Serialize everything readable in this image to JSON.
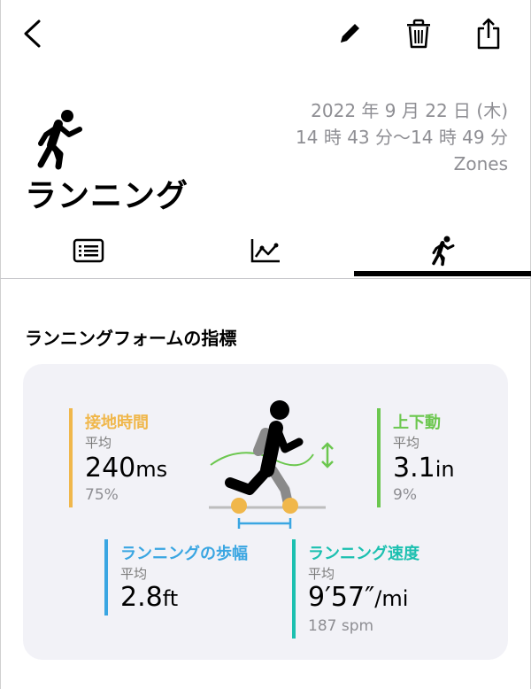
{
  "header": {
    "date": "2022 年 9 月 22 日 (木)",
    "time_range": "14 時 43 分〜14 時 49 分",
    "source": "Zones",
    "title": "ランニング"
  },
  "toolbar": {
    "back_icon": "chevron-left-icon",
    "edit_icon": "pencil-icon",
    "delete_icon": "trash-icon",
    "share_icon": "share-icon"
  },
  "tabs": [
    {
      "icon": "list-icon",
      "selected": false
    },
    {
      "icon": "line-chart-icon",
      "selected": false
    },
    {
      "icon": "runner-icon",
      "selected": true
    }
  ],
  "section": {
    "title": "ランニングフォームの指標"
  },
  "metrics": {
    "ground_contact": {
      "label": "接地時間",
      "sub": "平均",
      "value": "240",
      "unit": "ms",
      "percent": "75%",
      "color": "#f0b74b"
    },
    "vertical_osc": {
      "label": "上下動",
      "sub": "平均",
      "value": "3.1",
      "unit": "in",
      "percent": "9%",
      "color": "#6cc74f"
    },
    "stride": {
      "label": "ランニングの歩幅",
      "sub": "平均",
      "value": "2.8",
      "unit": "ft",
      "color": "#3aa6e2"
    },
    "speed": {
      "label": "ランニング速度",
      "sub": "平均",
      "value": "9′57″",
      "unit": "/mi",
      "cadence": "187 spm",
      "color": "#1cc0b0"
    }
  }
}
